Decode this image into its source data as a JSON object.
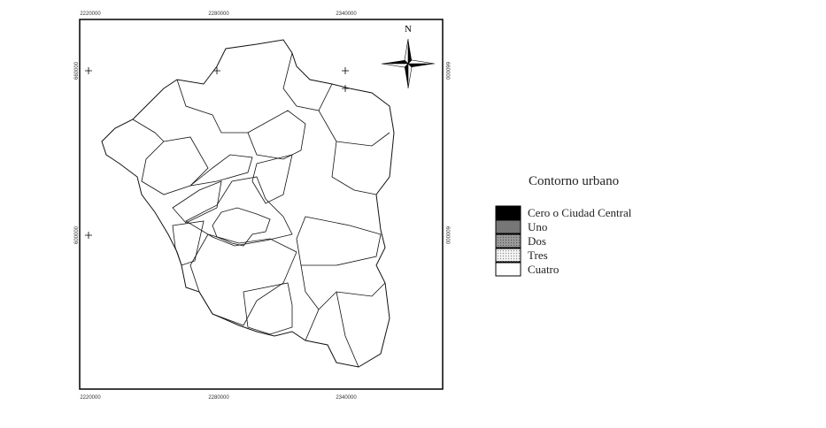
{
  "map": {
    "x_labels_top": [
      "2220000",
      "2280000",
      "2340000"
    ],
    "x_labels_bottom": [
      "2220000",
      "2280000",
      "2340000"
    ],
    "y_labels_left": [
      "660000",
      "600000"
    ],
    "y_labels_right": [
      "660000",
      "600000"
    ],
    "north": "N"
  },
  "legend": {
    "title": "Contorno urbano",
    "items": [
      "Cero o Ciudad Central",
      "Uno",
      "Dos",
      "Tres",
      "Cuatro"
    ]
  }
}
